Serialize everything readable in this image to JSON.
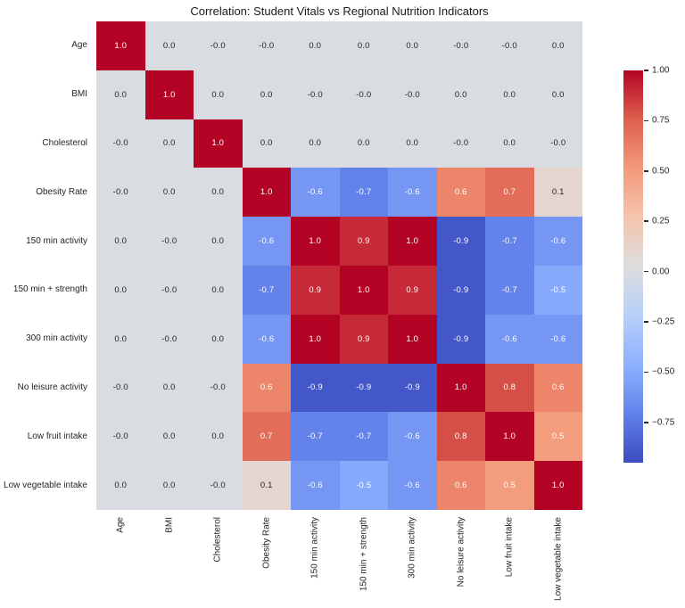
{
  "title": "Correlation: Student Vitals vs Regional Nutrition Indicators",
  "chart_data": {
    "type": "heatmap",
    "title": "Correlation: Student Vitals vs Regional Nutrition Indicators",
    "axis_labels": [
      "Age",
      "BMI",
      "Cholesterol",
      "Obesity Rate",
      "150 min activity",
      "150 min + strength",
      "300 min activity",
      "No leisure activity",
      "Low fruit intake",
      "Low vegetable intake"
    ],
    "matrix": [
      [
        "1.0",
        "0.0",
        "-0.0",
        "-0.0",
        "0.0",
        "0.0",
        "0.0",
        "-0.0",
        "-0.0",
        "0.0"
      ],
      [
        "0.0",
        "1.0",
        "0.0",
        "0.0",
        "-0.0",
        "-0.0",
        "-0.0",
        "0.0",
        "0.0",
        "0.0"
      ],
      [
        "-0.0",
        "0.0",
        "1.0",
        "0.0",
        "0.0",
        "0.0",
        "0.0",
        "-0.0",
        "0.0",
        "-0.0"
      ],
      [
        "-0.0",
        "0.0",
        "0.0",
        "1.0",
        "-0.6",
        "-0.7",
        "-0.6",
        "0.6",
        "0.7",
        "0.1"
      ],
      [
        "0.0",
        "-0.0",
        "0.0",
        "-0.6",
        "1.0",
        "0.9",
        "1.0",
        "-0.9",
        "-0.7",
        "-0.6"
      ],
      [
        "0.0",
        "-0.0",
        "0.0",
        "-0.7",
        "0.9",
        "1.0",
        "0.9",
        "-0.9",
        "-0.7",
        "-0.5"
      ],
      [
        "0.0",
        "-0.0",
        "0.0",
        "-0.6",
        "1.0",
        "0.9",
        "1.0",
        "-0.9",
        "-0.6",
        "-0.6"
      ],
      [
        "-0.0",
        "0.0",
        "-0.0",
        "0.6",
        "-0.9",
        "-0.9",
        "-0.9",
        "1.0",
        "0.8",
        "0.6"
      ],
      [
        "-0.0",
        "0.0",
        "0.0",
        "0.7",
        "-0.7",
        "-0.7",
        "-0.6",
        "0.8",
        "1.0",
        "0.5"
      ],
      [
        "0.0",
        "0.0",
        "-0.0",
        "0.1",
        "-0.6",
        "-0.5",
        "-0.6",
        "0.6",
        "0.5",
        "1.0"
      ]
    ],
    "colormap": "coolwarm",
    "vmin": -0.95,
    "vmax": 1.0,
    "legend_position": "right-colorbar",
    "colorbar_ticks": [
      {
        "label": "1.00",
        "value": 1.0
      },
      {
        "label": "0.75",
        "value": 0.75
      },
      {
        "label": "0.50",
        "value": 0.5
      },
      {
        "label": "0.25",
        "value": 0.25
      },
      {
        "label": "0.00",
        "value": 0.0
      },
      {
        "label": "−0.25",
        "value": -0.25
      },
      {
        "label": "−0.50",
        "value": -0.5
      },
      {
        "label": "−0.75",
        "value": -0.75
      }
    ]
  },
  "colors": {
    "coolwarm_anchors": [
      "#3b4cc0",
      "#6282ea",
      "#8db0fe",
      "#b8d0f9",
      "#dddddd",
      "#f5c4ad",
      "#f49a7b",
      "#de604d",
      "#b40426"
    ],
    "annotation_light": "#ffffff",
    "annotation_dark": "#262626",
    "tick_label": "#262626",
    "title_text": "#1a1a1a",
    "background": "#ffffff"
  }
}
